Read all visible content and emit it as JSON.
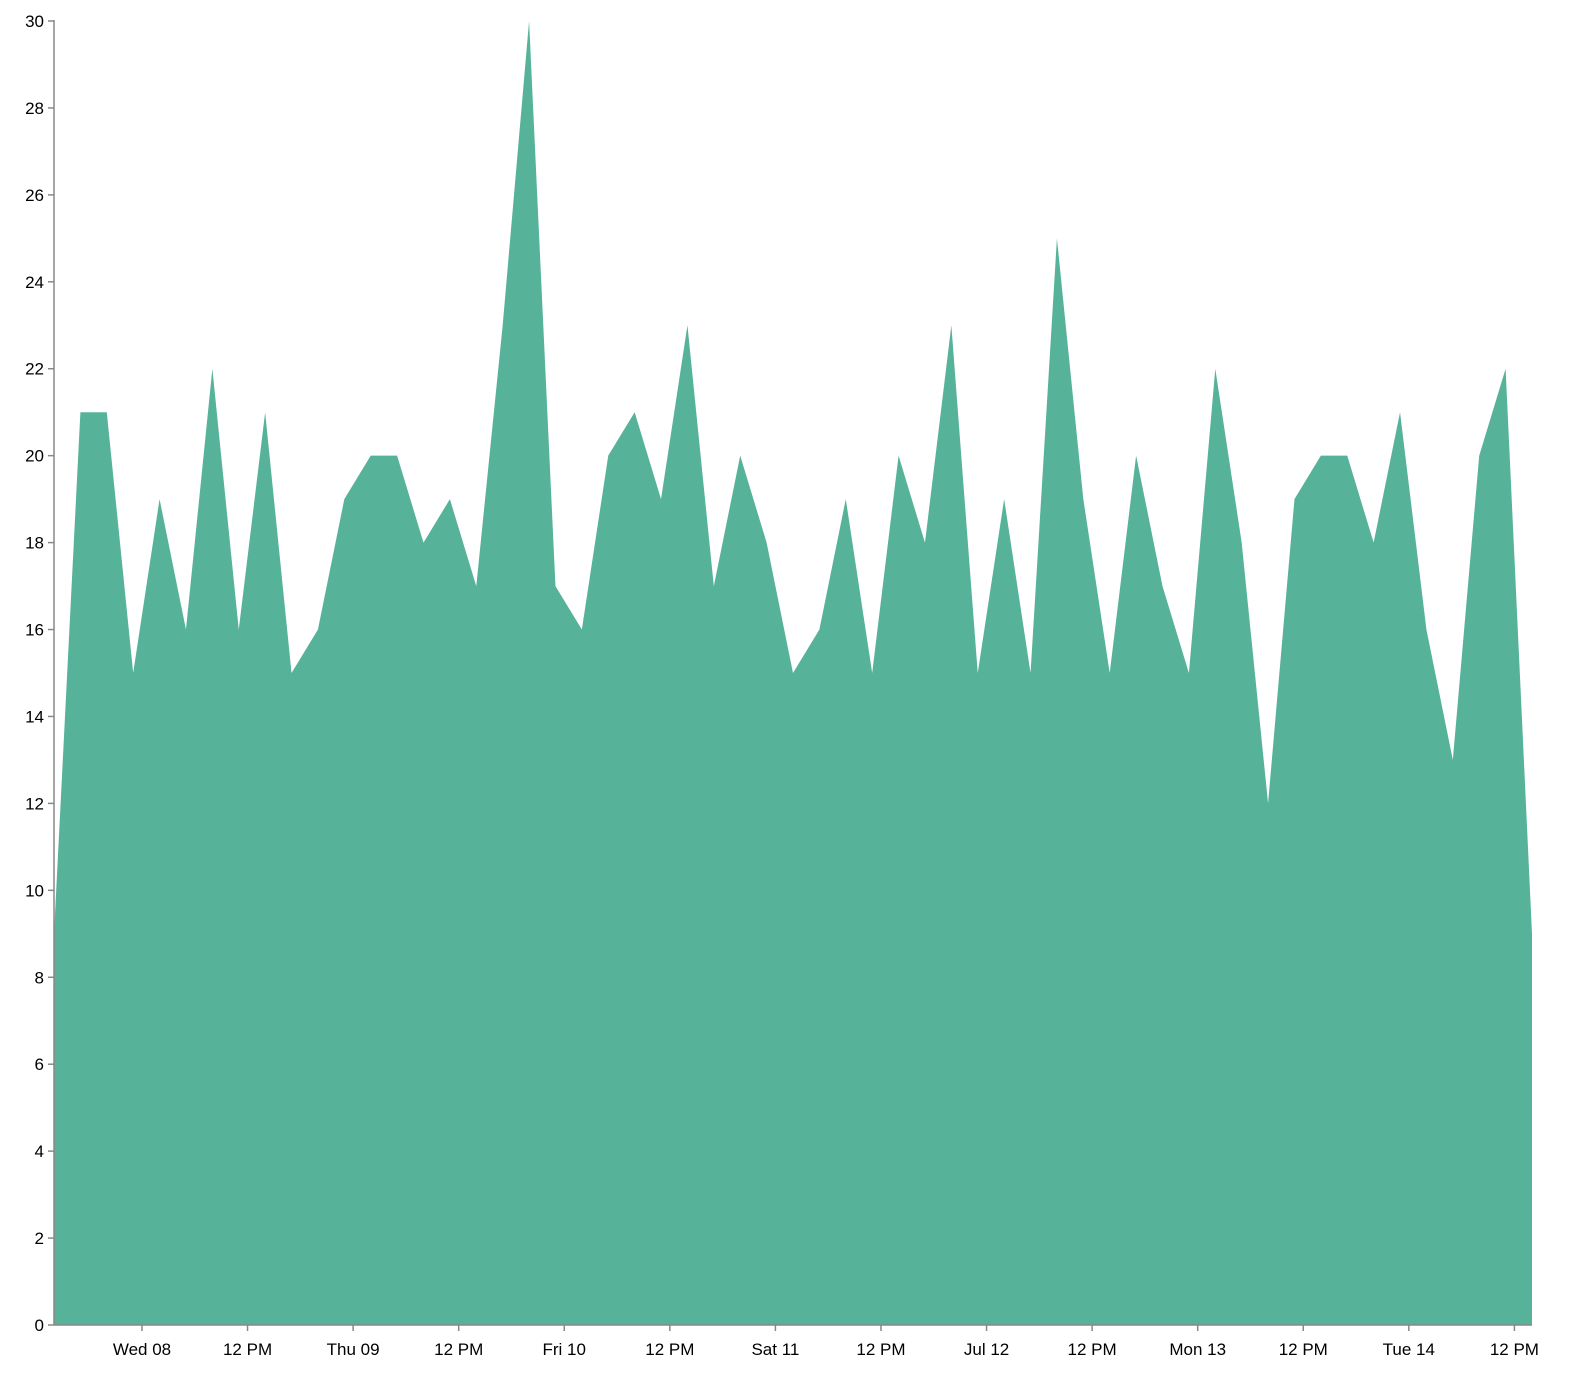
{
  "chart_data": {
    "type": "area",
    "title": "",
    "xlabel": "",
    "ylabel": "",
    "fill_color": "#56b399",
    "ylim": [
      0,
      30
    ],
    "xlim": [
      "2020-07-07T14:00",
      "2020-07-14T14:00"
    ],
    "grid": false,
    "y_ticks": [
      "0",
      "2",
      "4",
      "6",
      "8",
      "10",
      "12",
      "14",
      "16",
      "18",
      "20",
      "22",
      "24",
      "26",
      "28",
      "30"
    ],
    "x_ticks": [
      {
        "t": "2020-07-08T00:00",
        "label": "Wed 08"
      },
      {
        "t": "2020-07-08T12:00",
        "label": "12 PM"
      },
      {
        "t": "2020-07-09T00:00",
        "label": "Thu 09"
      },
      {
        "t": "2020-07-09T12:00",
        "label": "12 PM"
      },
      {
        "t": "2020-07-10T00:00",
        "label": "Fri 10"
      },
      {
        "t": "2020-07-10T12:00",
        "label": "12 PM"
      },
      {
        "t": "2020-07-11T00:00",
        "label": "Sat 11"
      },
      {
        "t": "2020-07-11T12:00",
        "label": "12 PM"
      },
      {
        "t": "2020-07-12T00:00",
        "label": "Jul 12"
      },
      {
        "t": "2020-07-12T12:00",
        "label": "12 PM"
      },
      {
        "t": "2020-07-13T00:00",
        "label": "Mon 13"
      },
      {
        "t": "2020-07-13T12:00",
        "label": "12 PM"
      },
      {
        "t": "2020-07-14T00:00",
        "label": "Tue 14"
      },
      {
        "t": "2020-07-14T12:00",
        "label": "12 PM"
      }
    ],
    "x_start": "2020-07-07T14:00",
    "x_step_hours": 3,
    "values": [
      9,
      21,
      21,
      15,
      19,
      16,
      22,
      16,
      21,
      15,
      16,
      19,
      20,
      20,
      18,
      19,
      17,
      23,
      30,
      17,
      16,
      20,
      21,
      19,
      23,
      17,
      20,
      18,
      15,
      16,
      19,
      15,
      20,
      18,
      23,
      15,
      19,
      15,
      25,
      19,
      15,
      20,
      17,
      15,
      22,
      18,
      12,
      19,
      20,
      20,
      18,
      21,
      16,
      13,
      20,
      22,
      9
    ]
  }
}
